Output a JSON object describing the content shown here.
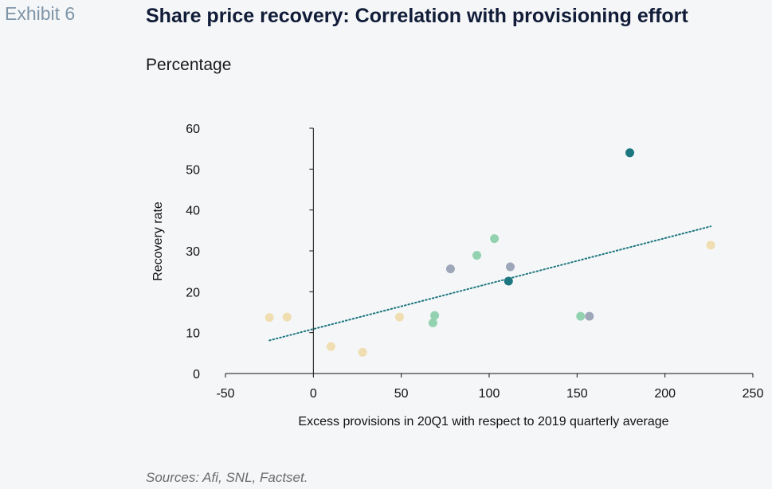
{
  "header": {
    "exhibit_label": "Exhibit 6",
    "title": "Share price recovery: Correlation with provisioning effort",
    "subtitle": "Percentage"
  },
  "footer": {
    "source": "Sources: Afi, SNL, Factset."
  },
  "chart_data": {
    "type": "scatter",
    "title": "Share price recovery: Correlation with provisioning effort",
    "xlabel": "Excess provisions in 20Q1 with respect to 2019 quarterly average",
    "ylabel": "Recovery rate",
    "xlim": [
      -50,
      250
    ],
    "ylim": [
      0,
      60
    ],
    "xticks": [
      -50,
      0,
      50,
      100,
      150,
      200,
      250
    ],
    "yticks": [
      0,
      10,
      20,
      30,
      40,
      50,
      60
    ],
    "grid": false,
    "points": [
      {
        "x": -25,
        "y": 13.7,
        "color": "#f0deb2"
      },
      {
        "x": -15,
        "y": 13.8,
        "color": "#f0deb2"
      },
      {
        "x": 10,
        "y": 6.6,
        "color": "#f0deb2"
      },
      {
        "x": 28,
        "y": 5.2,
        "color": "#f0deb2"
      },
      {
        "x": 49,
        "y": 13.8,
        "color": "#f0deb2"
      },
      {
        "x": 226,
        "y": 31.4,
        "color": "#f0deb2"
      },
      {
        "x": 68,
        "y": 12.4,
        "color": "#93d2b0"
      },
      {
        "x": 69,
        "y": 14.2,
        "color": "#93d2b0"
      },
      {
        "x": 93,
        "y": 28.9,
        "color": "#93d2b0"
      },
      {
        "x": 103,
        "y": 33.0,
        "color": "#93d2b0"
      },
      {
        "x": 152,
        "y": 14.0,
        "color": "#93d2b0"
      },
      {
        "x": 78,
        "y": 25.6,
        "color": "#9ea7ba"
      },
      {
        "x": 112,
        "y": 26.1,
        "color": "#9ea7ba"
      },
      {
        "x": 157,
        "y": 14.0,
        "color": "#9ea7ba"
      },
      {
        "x": 111,
        "y": 22.6,
        "color": "#1c7780"
      },
      {
        "x": 180,
        "y": 54.0,
        "color": "#1c7780"
      }
    ],
    "trendline": {
      "style": "dotted",
      "color": "#1c7780",
      "x_start": -25,
      "y_start": 8.1,
      "x_end": 226,
      "y_end": 36.0
    }
  }
}
